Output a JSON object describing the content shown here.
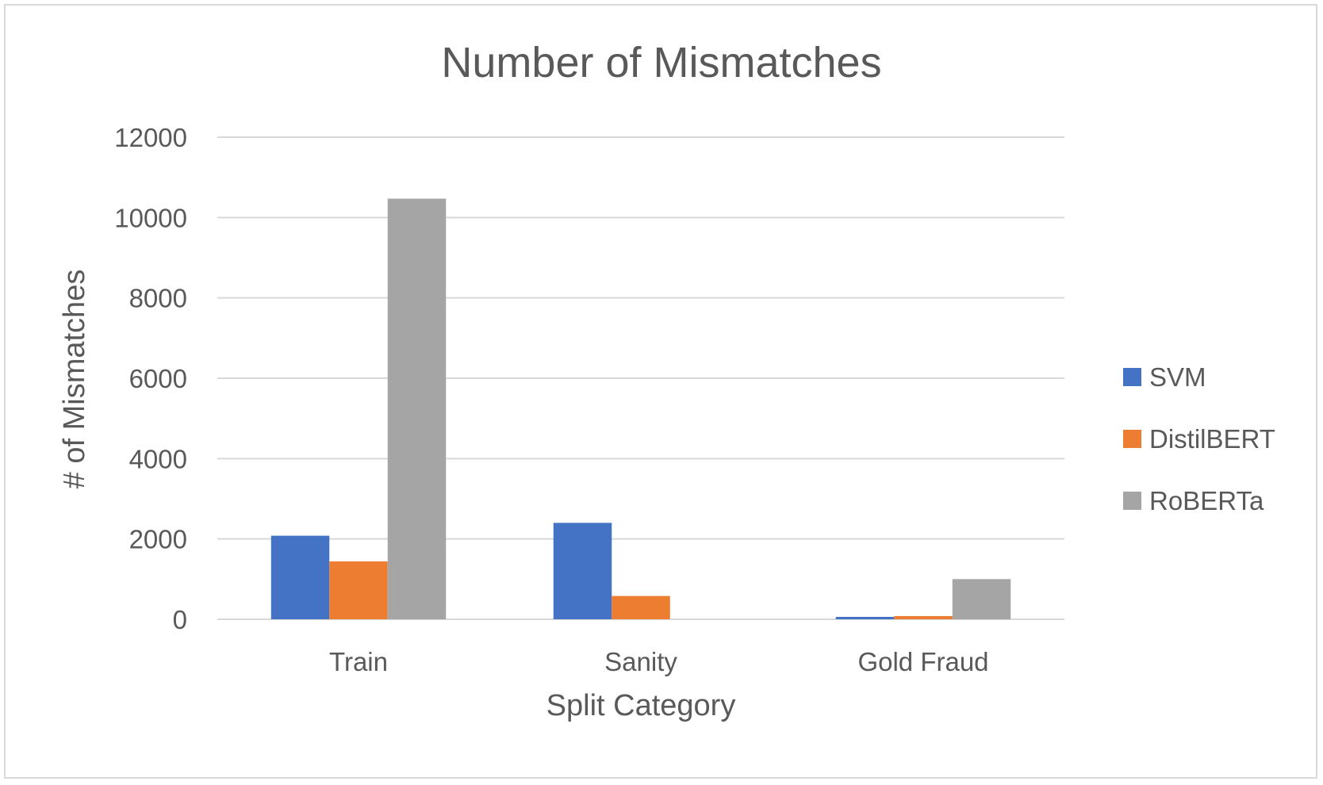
{
  "chart_data": {
    "type": "bar",
    "title": "Number of Mismatches",
    "xlabel": "Split Category",
    "ylabel": "# of Mismatches",
    "categories": [
      "Train",
      "Sanity",
      "Gold Fraud"
    ],
    "series": [
      {
        "name": "SVM",
        "values": [
          2080,
          2400,
          60
        ],
        "color": "#4472C4"
      },
      {
        "name": "DistilBERT",
        "values": [
          1440,
          580,
          80
        ],
        "color": "#ED7D31"
      },
      {
        "name": "RoBERTa",
        "values": [
          10470,
          0,
          1000
        ],
        "color": "#A5A5A5"
      }
    ],
    "ylim": [
      0,
      12000
    ],
    "yticks": [
      "0",
      "2000",
      "4000",
      "6000",
      "8000",
      "10000",
      "12000"
    ],
    "grid": true,
    "legend_position": "right"
  }
}
